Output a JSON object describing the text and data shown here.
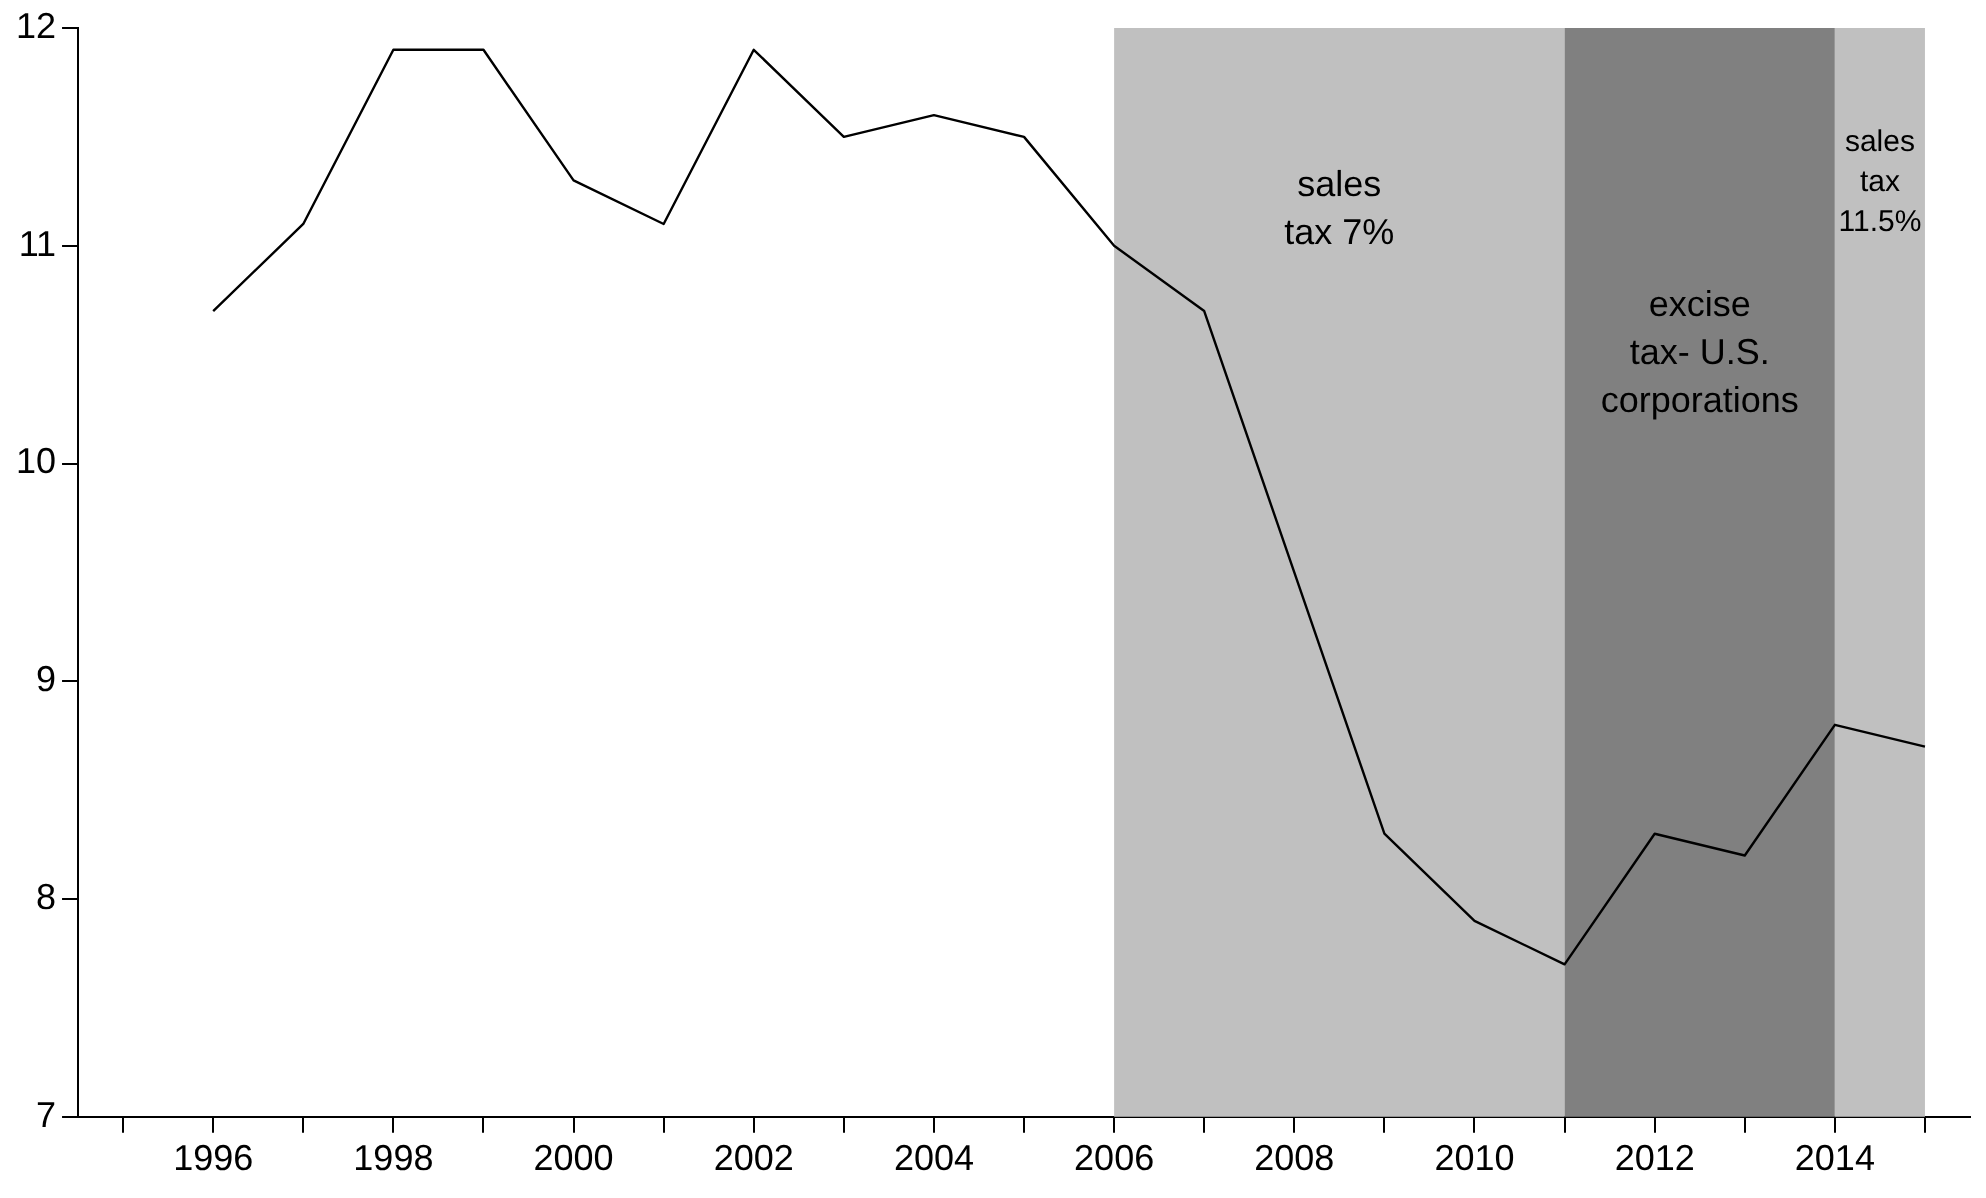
{
  "chart_data": {
    "type": "line",
    "x": [
      1996,
      1997,
      1998,
      1999,
      2000,
      2001,
      2002,
      2003,
      2004,
      2005,
      2006,
      2007,
      2008,
      2009,
      2010,
      2011,
      2012,
      2013,
      2014,
      2015
    ],
    "series": [
      {
        "color": "#000000",
        "values": [
          10.7,
          11.1,
          11.9,
          11.9,
          11.3,
          11.1,
          11.9,
          11.5,
          11.6,
          11.5,
          11.0,
          10.7,
          9.5,
          8.3,
          7.9,
          7.7,
          8.3,
          8.2,
          8.8,
          8.7
        ]
      }
    ],
    "xlim": [
      1994.5,
      2015.5
    ],
    "xticks": [
      {
        "value": 1995,
        "label": null
      },
      1996,
      {
        "value": 1997,
        "label": null
      },
      1998,
      {
        "value": 1999,
        "label": null
      },
      2000,
      {
        "value": 2001,
        "label": null
      },
      2002,
      {
        "value": 2003,
        "label": null
      },
      2004,
      {
        "value": 2005,
        "label": null
      },
      2006,
      {
        "value": 2007,
        "label": null
      },
      2008,
      {
        "value": 2009,
        "label": null
      },
      2010,
      {
        "value": 2011,
        "label": null
      },
      2012,
      {
        "value": 2013,
        "label": null
      },
      2014,
      {
        "value": 2015,
        "label": null
      }
    ],
    "ylim": [
      7,
      12
    ],
    "yticks": [
      7,
      8,
      9,
      10,
      11,
      12
    ],
    "bands": [
      {
        "axis": "x",
        "from": 2006,
        "to": 2011,
        "label": "sales\ntax 7%",
        "color": "#c0c0c0"
      },
      {
        "axis": "x",
        "from": 2011,
        "to": 2014,
        "label": "excise\ntax- U.S.\ncorporations",
        "color": "#808080"
      },
      {
        "axis": "x",
        "from": 2014,
        "to": 2015,
        "label": "sales\ntax\n11.5%",
        "color": "#c0c0c0"
      }
    ],
    "grid": false,
    "legend": false,
    "marker": "none",
    "line_style": "solid"
  }
}
